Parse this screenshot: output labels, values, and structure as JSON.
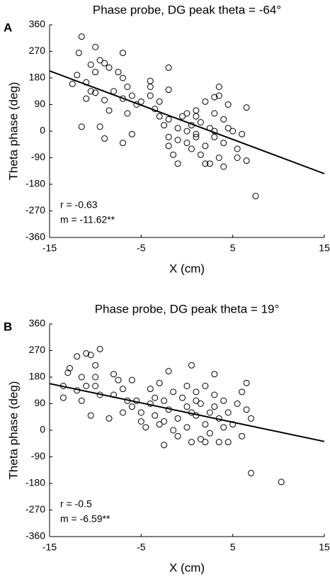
{
  "chart_data": [
    {
      "type": "scatter",
      "panel_label": "A",
      "title": "Phase probe, DG peak theta = -64°",
      "xlabel": "X (cm)",
      "ylabel": "Theta phase (deg)",
      "color": "#000000",
      "xlim": [
        -15,
        15
      ],
      "xticks": [
        -15,
        -5,
        5,
        15
      ],
      "ylim": [
        -360,
        360
      ],
      "yticks": [
        -360,
        -270,
        -180,
        -90,
        0,
        90,
        180,
        270,
        360
      ],
      "series": [
        {
          "x": [
            -11.5,
            -11.8,
            -10,
            -7,
            -12,
            -11,
            -10.5,
            -10,
            -9.5,
            -9,
            -8.5,
            -10.5,
            -10,
            -11,
            -9,
            -8.5,
            -9.5,
            -11.5,
            -9,
            -7.5,
            -7,
            -6.5,
            -6,
            -7,
            -5,
            -5.5,
            -6.5,
            -7,
            -6,
            -4,
            -4,
            -3.5,
            -3,
            -2,
            -2,
            -2,
            -2.5,
            -2,
            -2,
            -1.5,
            -1,
            -1,
            -0.5,
            0,
            0,
            0,
            0.5,
            0.5,
            1,
            1,
            1.5,
            1.5,
            2,
            2,
            2.5,
            2.5,
            3,
            3,
            3,
            3.5,
            3.5,
            3.5,
            4,
            4,
            4.5,
            4.5,
            5,
            5.5,
            6,
            6.5,
            6.5,
            7.5,
            5.5,
            2,
            1,
            -1,
            4,
            -3,
            -4,
            3,
            1,
            -8,
            -12.5
          ],
          "values": [
            320,
            265,
            285,
            265,
            190,
            165,
            225,
            200,
            240,
            230,
            215,
            135,
            130,
            110,
            105,
            70,
            15,
            15,
            -25,
            200,
            180,
            150,
            120,
            110,
            100,
            90,
            60,
            -40,
            -10,
            170,
            120,
            75,
            50,
            215,
            140,
            40,
            20,
            -20,
            -50,
            -80,
            -30,
            10,
            50,
            60,
            0,
            -40,
            -60,
            20,
            -20,
            50,
            -80,
            30,
            -50,
            100,
            10,
            -110,
            0,
            60,
            -20,
            150,
            120,
            -90,
            40,
            -40,
            90,
            10,
            0,
            -60,
            -10,
            80,
            -100,
            -220,
            -90,
            -110,
            -10,
            -110,
            -120,
            100,
            150,
            115,
            70,
            135,
            160
          ]
        }
      ],
      "fit_line": {
        "x": [
          -15,
          15
        ],
        "values": [
          204,
          -144
        ]
      },
      "annotations": [
        "r = -0.63",
        "m = -11.62**"
      ]
    },
    {
      "type": "scatter",
      "panel_label": "B",
      "title": "Phase probe, DG peak theta = 19°",
      "xlabel": "X (cm)",
      "ylabel": "Theta phase (deg)",
      "color": "#000000",
      "xlim": [
        -15,
        15
      ],
      "xticks": [
        -15,
        -5,
        5,
        15
      ],
      "ylim": [
        -360,
        360
      ],
      "yticks": [
        -360,
        -270,
        -180,
        -90,
        0,
        90,
        180,
        270,
        360
      ],
      "series": [
        {
          "x": [
            -13,
            -12.8,
            -13.5,
            -12,
            -11.5,
            -11,
            -10.5,
            -10,
            -9.5,
            -10,
            -11,
            -12,
            -11.5,
            -10.5,
            -10,
            -9.5,
            -8,
            -7.5,
            -8,
            -7,
            -6.5,
            -7,
            -6,
            -5,
            -5,
            -4,
            -4,
            -3.5,
            -3,
            -3,
            -2.5,
            -2.5,
            -2,
            -2,
            -1.5,
            -1,
            -1,
            -0.5,
            0,
            0,
            0.5,
            0.5,
            1,
            1,
            1.5,
            1.5,
            2,
            2,
            2.5,
            2.5,
            3,
            3,
            3.5,
            3.5,
            4,
            4,
            4.5,
            5,
            5.5,
            6,
            6,
            6.5,
            6.5,
            7,
            7,
            10.3,
            -13.5,
            -8.5,
            -4.5,
            -1.5,
            0.5,
            1,
            2,
            3,
            -5.5,
            -3.5,
            -6,
            4.5,
            -2.5,
            0
          ],
          "values": [
            195,
            210,
            110,
            250,
            180,
            260,
            255,
            220,
            275,
            180,
            150,
            135,
            100,
            50,
            150,
            120,
            190,
            170,
            120,
            140,
            100,
            60,
            80,
            30,
            60,
            140,
            90,
            50,
            160,
            20,
            100,
            -50,
            70,
            200,
            130,
            40,
            -20,
            110,
            80,
            10,
            220,
            -40,
            130,
            50,
            90,
            -30,
            150,
            20,
            60,
            -10,
            80,
            190,
            -40,
            40,
            100,
            10,
            60,
            20,
            90,
            -20,
            130,
            70,
            160,
            40,
            -145,
            -175,
            150,
            40,
            10,
            0,
            60,
            100,
            -40,
            120,
            100,
            110,
            170,
            -40,
            30,
            150
          ]
        }
      ],
      "fit_line": {
        "x": [
          -15,
          15
        ],
        "values": [
          158,
          -38
        ]
      },
      "annotations": [
        "r = -0.5",
        "m = -6.59**"
      ]
    }
  ]
}
